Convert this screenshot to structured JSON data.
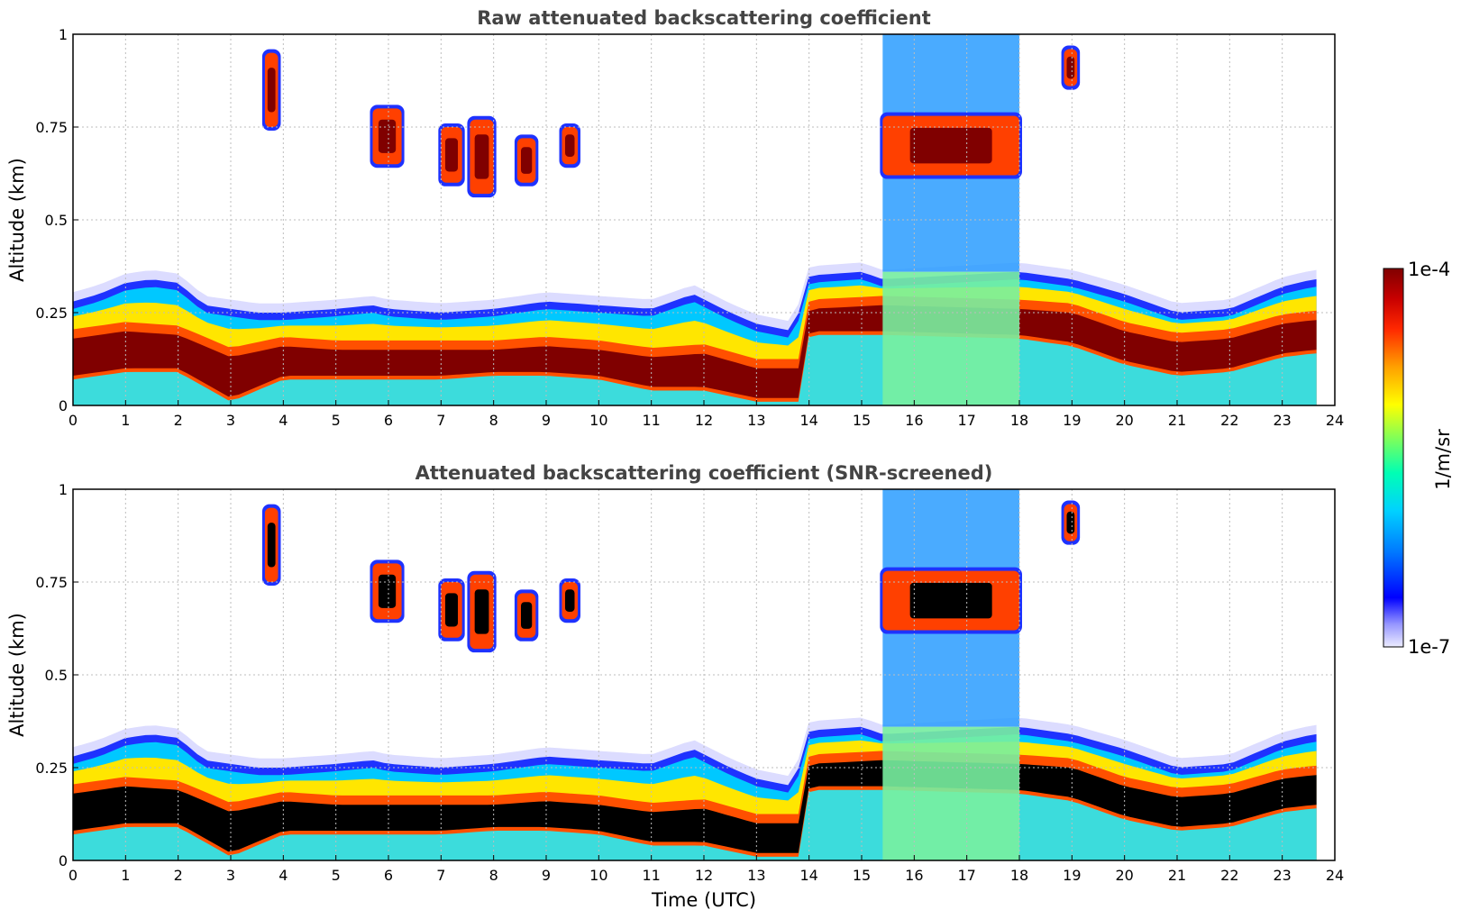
{
  "chart_data": [
    {
      "type": "heatmap",
      "title": "Raw attenuated backscattering coefficient",
      "ylabel": "Altitude (km)",
      "xlabel": "",
      "xlim": [
        0,
        24
      ],
      "ylim": [
        0,
        1
      ],
      "x_ticks": [
        "0",
        "1",
        "2",
        "3",
        "4",
        "5",
        "6",
        "7",
        "8",
        "9",
        "10",
        "11",
        "12",
        "13",
        "14",
        "15",
        "16",
        "17",
        "18",
        "19",
        "20",
        "21",
        "22",
        "23",
        "24"
      ],
      "y_ticks": [
        "0",
        "0.25",
        "0.5",
        "0.75",
        "1"
      ],
      "grid": true,
      "data_extent_hours": 23.65,
      "layer_top_km": [
        [
          0,
          0.28
        ],
        [
          0.5,
          0.3
        ],
        [
          1,
          0.33
        ],
        [
          1.5,
          0.34
        ],
        [
          2,
          0.33
        ],
        [
          2.5,
          0.27
        ],
        [
          3,
          0.26
        ],
        [
          3.5,
          0.25
        ],
        [
          4,
          0.25
        ],
        [
          5,
          0.26
        ],
        [
          5.7,
          0.27
        ],
        [
          6,
          0.26
        ],
        [
          7,
          0.25
        ],
        [
          8,
          0.26
        ],
        [
          9,
          0.28
        ],
        [
          10,
          0.27
        ],
        [
          11,
          0.26
        ],
        [
          11.8,
          0.3
        ],
        [
          12.5,
          0.25
        ],
        [
          13,
          0.22
        ],
        [
          13.7,
          0.2
        ],
        [
          14,
          0.35
        ],
        [
          15,
          0.36
        ],
        [
          15.4,
          0.34
        ],
        [
          18,
          0.36
        ],
        [
          18.5,
          0.35
        ],
        [
          19,
          0.34
        ],
        [
          20,
          0.3
        ],
        [
          21,
          0.25
        ],
        [
          22,
          0.26
        ],
        [
          23,
          0.32
        ],
        [
          23.6,
          0.34
        ]
      ],
      "saturated_band_km": [
        [
          0,
          0.18,
          0.08
        ],
        [
          1,
          0.2,
          0.1
        ],
        [
          2,
          0.19,
          0.1
        ],
        [
          3,
          0.13,
          0.02
        ],
        [
          4,
          0.16,
          0.08
        ],
        [
          5,
          0.15,
          0.08
        ],
        [
          6,
          0.15,
          0.08
        ],
        [
          7,
          0.15,
          0.08
        ],
        [
          8,
          0.15,
          0.09
        ],
        [
          9,
          0.16,
          0.09
        ],
        [
          10,
          0.15,
          0.08
        ],
        [
          11,
          0.13,
          0.05
        ],
        [
          12,
          0.14,
          0.05
        ],
        [
          13,
          0.1,
          0.02
        ],
        [
          13.8,
          0.1,
          0.02
        ],
        [
          14,
          0.26,
          0.2
        ],
        [
          15.4,
          0.27,
          0.2
        ],
        [
          18,
          0.26,
          0.19
        ],
        [
          19,
          0.25,
          0.17
        ],
        [
          20,
          0.2,
          0.12
        ],
        [
          21,
          0.17,
          0.09
        ],
        [
          22,
          0.18,
          0.1
        ],
        [
          23,
          0.22,
          0.14
        ],
        [
          23.6,
          0.23,
          0.15
        ]
      ],
      "cloud_features": [
        {
          "x_range": [
            3.65,
            3.9
          ],
          "alt_km": [
            0.75,
            0.95
          ]
        },
        {
          "x_range": [
            5.7,
            6.25
          ],
          "alt_km": [
            0.65,
            0.8
          ]
        },
        {
          "x_range": [
            7.0,
            7.4
          ],
          "alt_km": [
            0.6,
            0.75
          ]
        },
        {
          "x_range": [
            7.55,
            8.0
          ],
          "alt_km": [
            0.57,
            0.77
          ]
        },
        {
          "x_range": [
            8.45,
            8.8
          ],
          "alt_km": [
            0.6,
            0.72
          ]
        },
        {
          "x_range": [
            9.3,
            9.6
          ],
          "alt_km": [
            0.65,
            0.75
          ]
        },
        {
          "x_range": [
            15.4,
            18.0
          ],
          "alt_km": [
            0.62,
            0.78
          ]
        },
        {
          "x_range": [
            18.85,
            19.1
          ],
          "alt_km": [
            0.86,
            0.96
          ]
        }
      ],
      "mixed_layer_hours": [
        15.4,
        18.0
      ]
    },
    {
      "type": "heatmap",
      "title": "Attenuated backscattering coefficient (SNR-screened)",
      "ylabel": "Altitude (km)",
      "xlabel": "Time (UTC)",
      "xlim": [
        0,
        24
      ],
      "ylim": [
        0,
        1
      ],
      "x_ticks": [
        "0",
        "1",
        "2",
        "3",
        "4",
        "5",
        "6",
        "7",
        "8",
        "9",
        "10",
        "11",
        "12",
        "13",
        "14",
        "15",
        "16",
        "17",
        "18",
        "19",
        "20",
        "21",
        "22",
        "23",
        "24"
      ],
      "y_ticks": [
        "0",
        "0.25",
        "0.5",
        "0.75",
        "1"
      ],
      "grid": true,
      "saturated_color": "#000000"
    }
  ],
  "colorbar": {
    "label": "1/m/sr",
    "max_label": "1e-4",
    "min_label": "1e-7",
    "scale": "log",
    "colormap": "jet",
    "colors": [
      "#e8e8ff",
      "#0000ff",
      "#00bfff",
      "#00ffc8",
      "#b4ff32",
      "#ffff00",
      "#ff8000",
      "#ff0000",
      "#800000"
    ]
  }
}
